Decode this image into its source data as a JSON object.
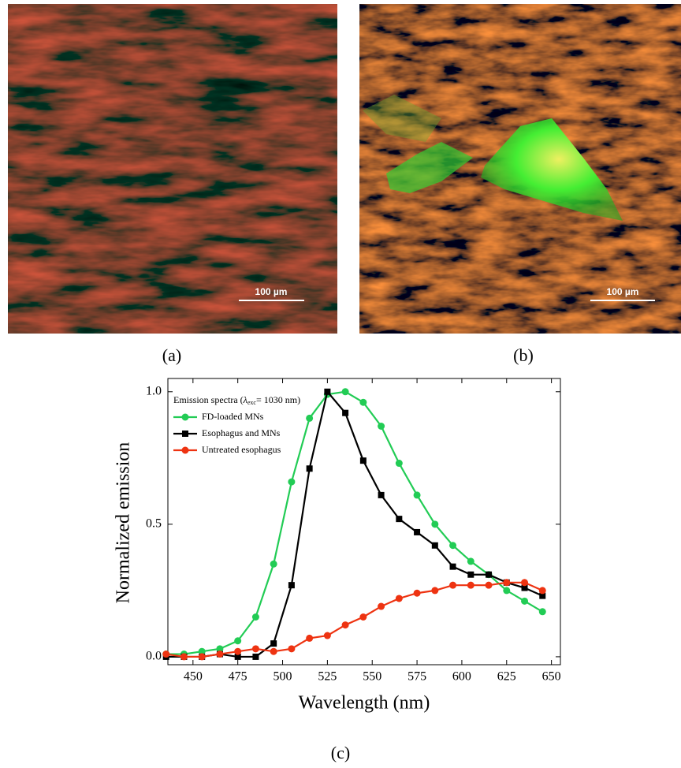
{
  "panels": [
    {
      "label": "(a)",
      "scale_bar": "100 µm"
    },
    {
      "label": "(b)",
      "scale_bar": "100 µm"
    }
  ],
  "chart_label": "(c)",
  "chart_data": {
    "type": "line",
    "xlabel": "Wavelength (nm)",
    "ylabel": "Normalized emission",
    "legend_title": {
      "prefix": "Emission spectra (",
      "symbol": "λ",
      "sub": "exc",
      "suffix": "= 1030 nm)"
    },
    "legend": "upper left",
    "x": [
      435,
      445,
      455,
      465,
      475,
      485,
      495,
      505,
      515,
      525,
      535,
      545,
      555,
      565,
      575,
      585,
      595,
      605,
      615,
      625,
      635,
      645
    ],
    "series": [
      {
        "name": "FD-loaded MNs",
        "color": "#22cc55",
        "marker": "circle",
        "values": [
          0.01,
          0.01,
          0.02,
          0.03,
          0.06,
          0.15,
          0.35,
          0.66,
          0.9,
          0.99,
          1.0,
          0.96,
          0.87,
          0.73,
          0.61,
          0.5,
          0.42,
          0.36,
          0.31,
          0.25,
          0.21,
          0.17
        ]
      },
      {
        "name": "Esophagus and MNs",
        "color": "#000000",
        "marker": "square",
        "values": [
          0.0,
          0.0,
          0.0,
          0.01,
          0.0,
          0.0,
          0.05,
          0.27,
          0.71,
          1.0,
          0.92,
          0.74,
          0.61,
          0.52,
          0.47,
          0.42,
          0.34,
          0.31,
          0.31,
          0.28,
          0.26,
          0.23
        ]
      },
      {
        "name": "Untreated esophagus",
        "color": "#ee3311",
        "marker": "circle",
        "values": [
          0.01,
          0.0,
          0.0,
          0.01,
          0.02,
          0.03,
          0.02,
          0.03,
          0.07,
          0.08,
          0.12,
          0.15,
          0.19,
          0.22,
          0.24,
          0.25,
          0.27,
          0.27,
          0.27,
          0.28,
          0.28,
          0.25
        ]
      }
    ],
    "xlim": [
      436,
      655
    ],
    "ylim": [
      -0.03,
      1.05
    ],
    "xticks": [
      450,
      475,
      500,
      525,
      550,
      575,
      600,
      625,
      650
    ],
    "yticks": [
      {
        "value": 0,
        "label": "0.0"
      },
      {
        "value": 0.5,
        "label": "0.5"
      },
      {
        "value": 1,
        "label": "1.0"
      }
    ]
  }
}
